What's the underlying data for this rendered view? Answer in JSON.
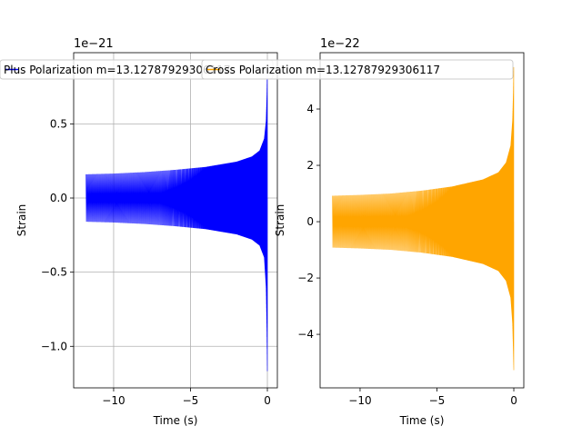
{
  "chart_data": [
    {
      "type": "line",
      "panel": "left",
      "xlabel": "Time (s)",
      "ylabel": "Strain",
      "offset_text": "1e−21",
      "grid": true,
      "legend": {
        "label": "Plus Polarization m=13.12787929306117",
        "placement": "top-left"
      },
      "color": "#0000ff",
      "xlim": [
        -12.6,
        0.65
      ],
      "ylim": [
        -1.28,
        0.98
      ],
      "x_ticks": [
        -10,
        -5,
        0
      ],
      "x_tick_labels": [
        "−10",
        "−5",
        "0"
      ],
      "y_ticks": [
        -1.0,
        -0.5,
        0.0,
        0.5
      ],
      "y_tick_labels": [
        "−1.0",
        "−0.5",
        "0.0",
        "0.5"
      ],
      "series": [
        {
          "envelope": {
            "t": [
              -11.8,
              -10,
              -8,
              -6,
              -4,
              -2,
              -1,
              -0.5,
              -0.2,
              -0.08,
              -0.03,
              0
            ],
            "upper": [
              0.16,
              0.165,
              0.175,
              0.19,
              0.21,
              0.245,
              0.28,
              0.32,
              0.4,
              0.52,
              0.7,
              0.9
            ],
            "lower": [
              -0.16,
              -0.165,
              -0.175,
              -0.19,
              -0.21,
              -0.245,
              -0.28,
              -0.32,
              -0.4,
              -0.6,
              -0.9,
              -1.18
            ]
          }
        }
      ]
    },
    {
      "type": "line",
      "panel": "right",
      "xlabel": "Time (s)",
      "ylabel": "Strain",
      "offset_text": "1e−22",
      "grid": false,
      "legend": {
        "label": "Cross Polarization m=13.12787929306117",
        "placement": "top-left"
      },
      "color": "#ffa500",
      "xlim": [
        -12.6,
        0.65
      ],
      "ylim": [
        -5.9,
        6.0
      ],
      "x_ticks": [
        -10,
        -5,
        0
      ],
      "x_tick_labels": [
        "−10",
        "−5",
        "0"
      ],
      "y_ticks": [
        -4,
        -2,
        0,
        2,
        4
      ],
      "y_tick_labels": [
        "−4",
        "−2",
        "0",
        "2",
        "4"
      ],
      "series": [
        {
          "envelope": {
            "t": [
              -11.8,
              -10,
              -8,
              -6,
              -4,
              -2,
              -1,
              -0.5,
              -0.2,
              -0.08,
              -0.03,
              0
            ],
            "upper": [
              0.92,
              0.95,
              1.0,
              1.1,
              1.25,
              1.5,
              1.75,
              2.1,
              2.7,
              3.6,
              4.6,
              5.6
            ],
            "lower": [
              -0.92,
              -0.95,
              -1.0,
              -1.1,
              -1.25,
              -1.5,
              -1.75,
              -2.1,
              -2.7,
              -3.6,
              -4.6,
              -5.3
            ]
          }
        }
      ]
    }
  ]
}
